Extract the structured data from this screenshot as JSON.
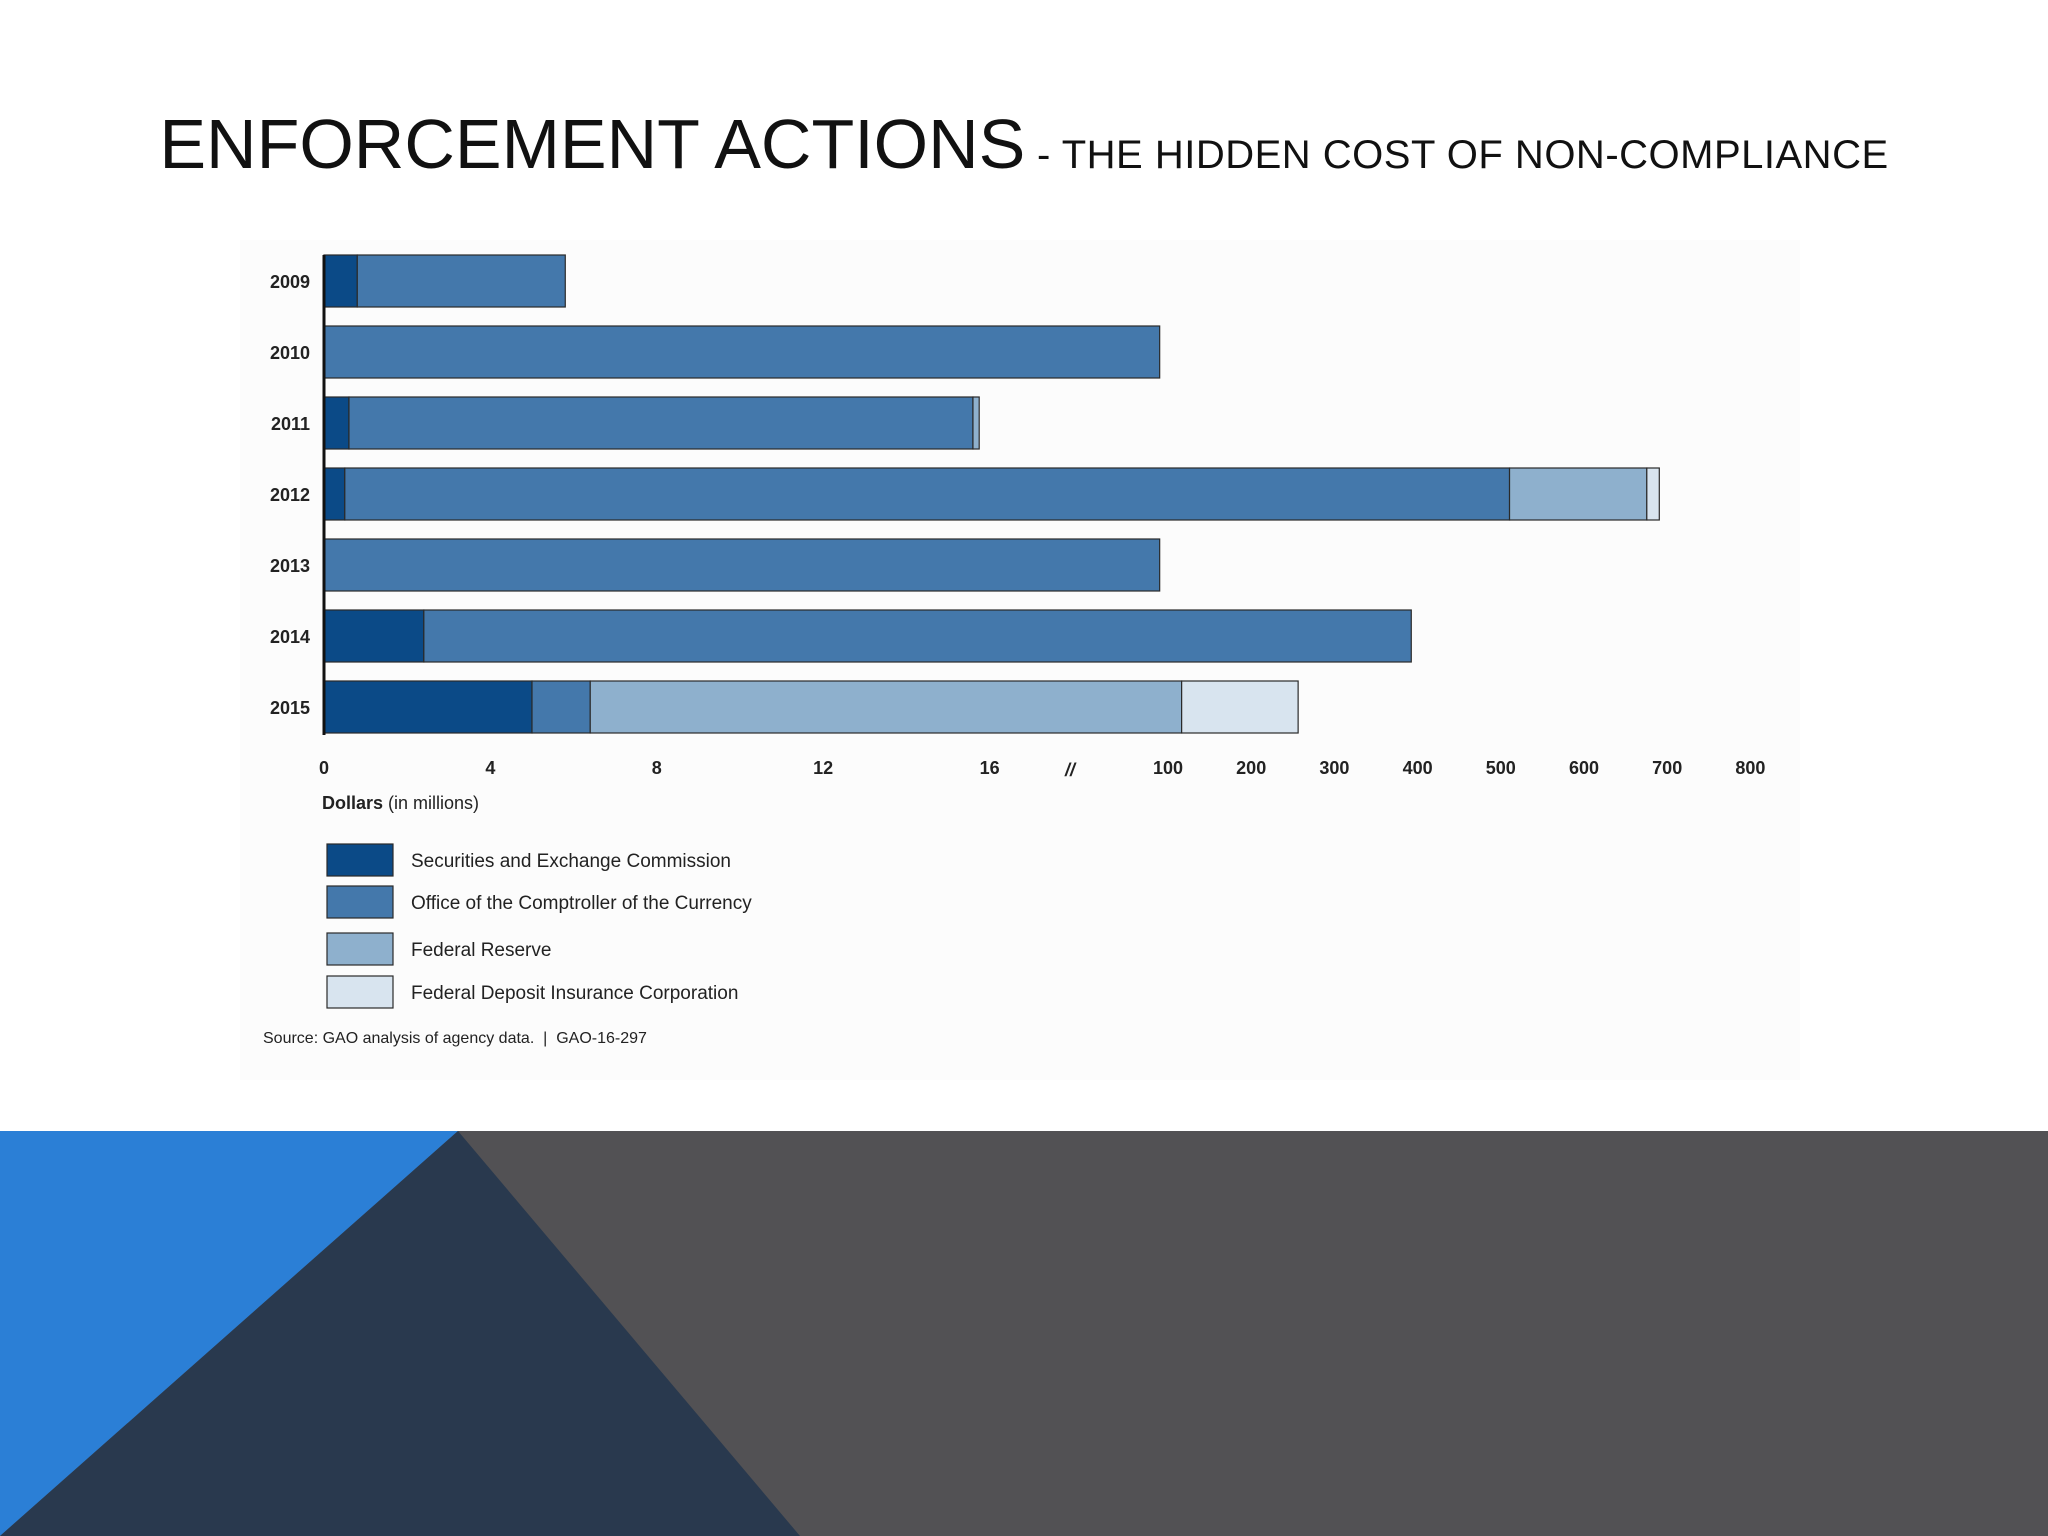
{
  "slide": {
    "title_main": "ENFORCEMENT ACTIONS",
    "title_sub": " - THE HIDDEN COST OF NON-COMPLIANCE"
  },
  "chart_data": {
    "type": "bar",
    "orientation": "horizontal",
    "stacked": true,
    "broken_axis": true,
    "xlabel_bold": "Dollars",
    "xlabel_rest": " (in millions)",
    "x_ticks": [
      "0",
      "4",
      "8",
      "12",
      "16",
      "100",
      "200",
      "300",
      "400",
      "500",
      "600",
      "700",
      "800"
    ],
    "axis_break_symbol": "//",
    "categories": [
      "2009",
      "2010",
      "2011",
      "2012",
      "2013",
      "2014",
      "2015"
    ],
    "series": [
      {
        "name": "Securities and Exchange Commission",
        "color": "#0b4a87",
        "values": [
          0.8,
          0,
          0.6,
          0.5,
          0,
          2.4,
          5.0
        ]
      },
      {
        "name": "Office of the Comptroller of the Currency",
        "color": "#4478ab",
        "values": [
          5.0,
          90,
          15.0,
          510,
          90,
          390,
          1.4
        ]
      },
      {
        "name": "Federal Reserve",
        "color": "#8eb0cd",
        "values": [
          0,
          0,
          0.15,
          165,
          0,
          0,
          110
        ]
      },
      {
        "name": "Federal Deposit Insurance Corporation",
        "color": "#d8e4ef",
        "values": [
          0,
          0,
          0,
          15,
          0,
          0,
          140
        ]
      }
    ],
    "source": "Source: GAO analysis of agency data.  |  GAO-16-297"
  },
  "decor": {
    "footer_gray": "#525154",
    "footer_blue": "#2b7fd6",
    "footer_navy": "#29394e"
  }
}
